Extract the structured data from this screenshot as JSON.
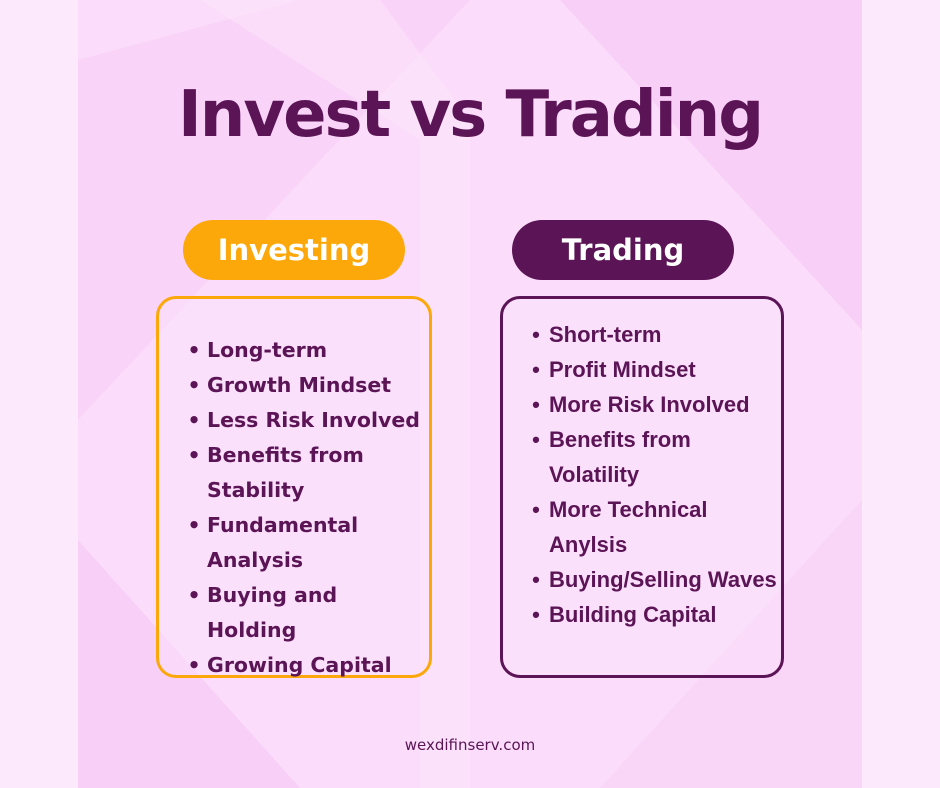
{
  "title": "Invest vs Trading",
  "colors": {
    "background": "#fbe1fb",
    "accent_orange": "#fca80b",
    "accent_purple": "#5b1455"
  },
  "investing": {
    "heading": "Investing",
    "items": [
      "Long-term",
      "Growth Mindset",
      "Less Risk Involved",
      "Benefits from Stability",
      "Fundamental Analysis",
      "Buying and Holding",
      "Growing Capital"
    ]
  },
  "trading": {
    "heading": "Trading",
    "items": [
      "Short-term",
      "Profit Mindset",
      "More Risk Involved",
      "Benefits from Volatility",
      "More Technical Anylsis",
      "Buying/Selling Waves",
      "Building Capital"
    ]
  },
  "footer": "wexdifinserv.com"
}
